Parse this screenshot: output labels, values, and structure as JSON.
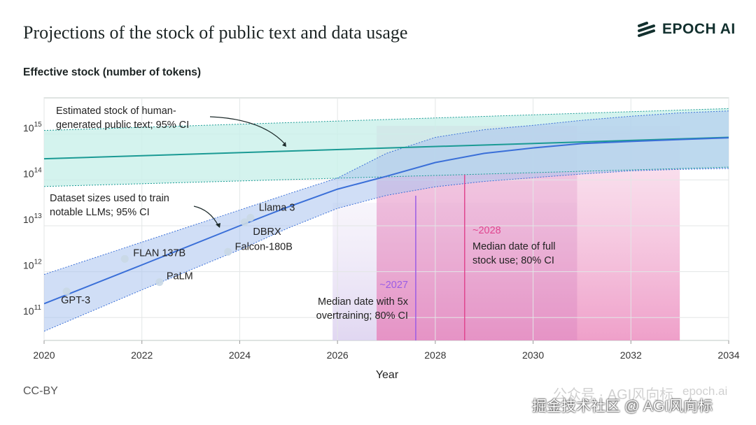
{
  "header": {
    "title": "Projections of the stock of public text and data usage",
    "brand": "EPOCH AI"
  },
  "footer": {
    "license": "CC-BY",
    "site": "epoch.ai",
    "watermark_1": "公众号 · AGI风向标",
    "watermark_2": "掘金技术社区 @ AGI风向标"
  },
  "chart_data": {
    "type": "line",
    "title": "Projections of the stock of public text and data usage",
    "ylabel": "Effective stock (number of tokens)",
    "xlabel": "Year",
    "xlim": [
      2020,
      2034
    ],
    "ylim_log10": [
      10.5,
      15.79
    ],
    "yscale": "log",
    "grid": true,
    "x_ticks": [
      "2020",
      "2022",
      "2024",
      "2026",
      "2028",
      "2030",
      "2032",
      "2034"
    ],
    "y_ticks": [
      {
        "base": "10",
        "exp": "11"
      },
      {
        "base": "10",
        "exp": "12"
      },
      {
        "base": "10",
        "exp": "13"
      },
      {
        "base": "10",
        "exp": "14"
      },
      {
        "base": "10",
        "exp": "15"
      }
    ],
    "colors": {
      "stock": "#1a9a94",
      "stock_band": "#c9f0ea",
      "dataset": "#3a6fd8",
      "dataset_band": "#a9c3ee",
      "overtrain": "#9b5de5",
      "fullstock": "#e0468f"
    },
    "stock": {
      "label": "Estimated stock of human-generated public text; 95% CI",
      "label_lines": [
        "Estimated stock of human-",
        "generated public text; 95% CI"
      ],
      "x": [
        2020,
        2034
      ],
      "median": [
        290000000000000.0,
        850000000000000.0
      ],
      "lower": [
        72000000000000.0,
        190000000000000.0
      ],
      "upper": [
        1200000000000000.0,
        3600000000000000.0
      ]
    },
    "dataset": {
      "label": "Dataset sizes used to train notable LLMs; 95% CI",
      "label_lines": [
        "Dataset sizes used to train",
        "notable LLMs; 95% CI"
      ],
      "x": [
        2020,
        2022,
        2024,
        2025,
        2026,
        2027,
        2028,
        2029,
        2030,
        2031,
        2032,
        2033,
        2034
      ],
      "median": [
        200000000000.0,
        1400000000000.0,
        10000000000000.0,
        26000000000000.0,
        63000000000000.0,
        120000000000000.0,
        240000000000000.0,
        380000000000000.0,
        500000000000000.0,
        620000000000000.0,
        690000000000000.0,
        760000000000000.0,
        830000000000000.0
      ],
      "lower": [
        50000000000.0,
        400000000000.0,
        3000000000000.0,
        9000000000000.0,
        24000000000000.0,
        46000000000000.0,
        71000000000000.0,
        93000000000000.0,
        112000000000000.0,
        135000000000000.0,
        158000000000000.0,
        170000000000000.0,
        178000000000000.0
      ],
      "upper": [
        870000000000.0,
        4400000000000.0,
        22000000000000.0,
        50000000000000.0,
        110000000000000.0,
        380000000000000.0,
        850000000000000.0,
        1250000000000000.0,
        1550000000000000.0,
        2000000000000000.0,
        2450000000000000.0,
        2900000000000000.0,
        3200000000000000.0
      ]
    },
    "models": [
      {
        "name": "GPT-3",
        "x": 2020.46,
        "y": 370000000000.0
      },
      {
        "name": "FLAN 137B",
        "x": 2021.65,
        "y": 1900000000000.0
      },
      {
        "name": "PaLM",
        "x": 2022.36,
        "y": 590000000000.0
      },
      {
        "name": "Falcon-180B",
        "x": 2023.76,
        "y": 2700000000000.0
      },
      {
        "name": "DBRX",
        "x": 2024.1,
        "y": 12000000000000.0
      },
      {
        "name": "Llama 3",
        "x": 2024.22,
        "y": 15000000000000.0
      }
    ],
    "overtraining": {
      "median_label": "~2027",
      "label_lines": [
        "Median date with 5x",
        "overtraining; 80% CI"
      ],
      "median": 2027.6,
      "ci": [
        2025.9,
        2030.9
      ]
    },
    "full_stock": {
      "median_label": "~2028",
      "label_lines": [
        "Median date of full",
        "stock use; 80% CI"
      ],
      "median": 2028.6,
      "ci": [
        2026.8,
        2033.0
      ]
    }
  }
}
